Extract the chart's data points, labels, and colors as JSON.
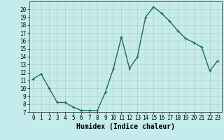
{
  "x": [
    0,
    1,
    2,
    3,
    4,
    5,
    6,
    7,
    8,
    9,
    10,
    11,
    12,
    13,
    14,
    15,
    16,
    17,
    18,
    19,
    20,
    21,
    22,
    23
  ],
  "y": [
    11.2,
    11.8,
    10.0,
    8.2,
    8.2,
    7.6,
    7.2,
    7.2,
    7.2,
    9.5,
    12.5,
    16.5,
    12.5,
    14.0,
    19.0,
    20.3,
    19.5,
    18.5,
    17.3,
    16.3,
    15.8,
    15.2,
    12.2,
    13.5
  ],
  "line_color": "#1a6b5a",
  "marker": "+",
  "marker_size": 3.5,
  "xlabel": "Humidex (Indice chaleur)",
  "ylim": [
    7,
    21
  ],
  "xlim": [
    -0.5,
    23.5
  ],
  "yticks": [
    7,
    8,
    9,
    10,
    11,
    12,
    13,
    14,
    15,
    16,
    17,
    18,
    19,
    20
  ],
  "xticks": [
    0,
    1,
    2,
    3,
    4,
    5,
    6,
    7,
    8,
    9,
    10,
    11,
    12,
    13,
    14,
    15,
    16,
    17,
    18,
    19,
    20,
    21,
    22,
    23
  ],
  "bg_color": "#c5ecec",
  "grid_color": "#b8b8b8",
  "xlabel_fontsize": 7,
  "tick_fontsize": 5.5,
  "linewidth": 1.0
}
